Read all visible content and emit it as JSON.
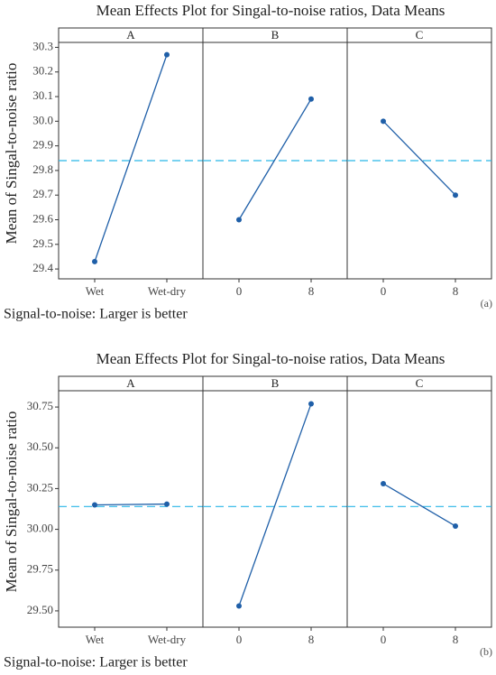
{
  "chart_data": [
    {
      "type": "line",
      "title": "Mean Effects Plot for Singal-to-noise ratios, Data Means",
      "ylabel": "Mean of Singal-to-noise ratio",
      "note": "Signal-to-noise: Larger is better",
      "tag": "(a)",
      "color": "#1f5fa8",
      "reference_line": 29.84,
      "reference_color": "#29b6e8",
      "ylim": [
        29.36,
        30.32
      ],
      "yticks": [
        29.4,
        29.5,
        29.6,
        29.7,
        29.8,
        29.9,
        {
          "value": 30,
          "label": "30.0"
        },
        30.1,
        30.2,
        30.3
      ],
      "panels": [
        {
          "name": "A",
          "categories": [
            "Wet",
            "Wet-dry"
          ],
          "values": [
            29.43,
            30.27
          ]
        },
        {
          "name": "B",
          "categories": [
            "0",
            "8"
          ],
          "values": [
            29.6,
            30.09
          ]
        },
        {
          "name": "C",
          "categories": [
            "0",
            "8"
          ],
          "values": [
            30.0,
            29.7
          ]
        }
      ]
    },
    {
      "type": "line",
      "title": "Mean Effects Plot for Singal-to-noise ratios, Data Means",
      "ylabel": "Mean of Singal-to-noise ratio",
      "note": "Signal-to-noise: Larger is better",
      "tag": "(b)",
      "color": "#1f5fa8",
      "reference_line": 30.14,
      "reference_color": "#29b6e8",
      "ylim": [
        29.4,
        30.85
      ],
      "yticks": [
        {
          "value": 29.5,
          "label": "29.50"
        },
        29.75,
        {
          "value": 30,
          "label": "30.00"
        },
        30.25,
        {
          "value": 30.5,
          "label": "30.50"
        },
        30.75
      ],
      "panels": [
        {
          "name": "A",
          "categories": [
            "Wet",
            "Wet-dry"
          ],
          "values": [
            30.15,
            30.155
          ]
        },
        {
          "name": "B",
          "categories": [
            "0",
            "8"
          ],
          "values": [
            29.53,
            30.77
          ]
        },
        {
          "name": "C",
          "categories": [
            "0",
            "8"
          ],
          "values": [
            30.28,
            30.02
          ]
        }
      ]
    }
  ]
}
